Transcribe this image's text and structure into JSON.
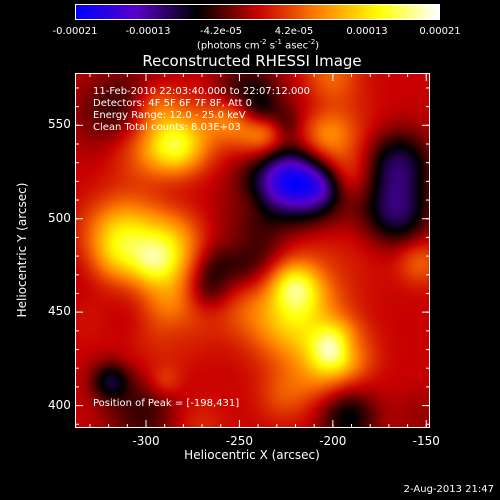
{
  "colorbar": {
    "ticks": [
      "-0.00021",
      "-0.00013",
      "-4.2e-05",
      "4.2e-05",
      "0.00013",
      "0.00021"
    ],
    "units_main": "(photons cm",
    "units_exp1": "-2",
    "units_mid": " s",
    "units_exp2": "-1",
    "units_mid2": " asec",
    "units_exp3": "-2",
    "units_end": ")",
    "range": [
      -0.00021,
      0.00021
    ]
  },
  "annotations": {
    "time": "11-Feb-2010 22:03:40.000 to 22:07:12.000",
    "detectors": "Detectors: 4F 5F 6F 7F 8F, Att 0",
    "energy": "Energy Range: 12.0 - 25.0 keV",
    "clean": "Clean     Total counts: 8.03E+03",
    "peak": "Position of Peak = [-198,431]"
  },
  "timestamp": "2-Aug-2013 21:47",
  "chart_data": {
    "type": "heatmap",
    "title": "Reconstructed RHESSI Image",
    "xlabel": "Heliocentric X (arcsec)",
    "ylabel": "Heliocentric Y (arcsec)",
    "xlim": [
      -338,
      -148
    ],
    "ylim": [
      388,
      578
    ],
    "xticks": [
      "-300",
      "-250",
      "-200",
      "-150"
    ],
    "xtick_values": [
      -300,
      -250,
      -200,
      -150
    ],
    "yticks": [
      "400",
      "450",
      "500",
      "550"
    ],
    "ytick_values": [
      400,
      450,
      500,
      550
    ],
    "peak": [
      -198,
      431
    ],
    "colormap": [
      "#0000ff",
      "#5a00c8",
      "#000000",
      "#c80000",
      "#ff8000",
      "#ffff00",
      "#ffffff"
    ]
  }
}
